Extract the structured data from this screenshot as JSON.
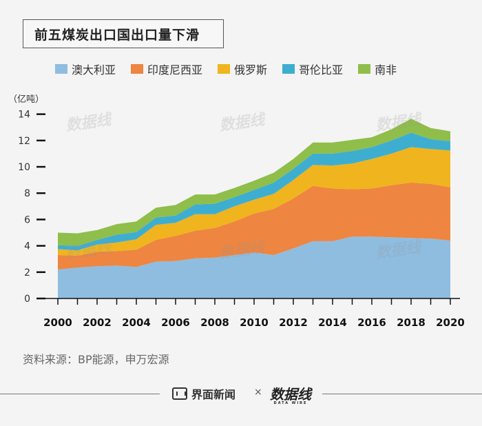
{
  "title": "前五煤炭出口国出口量下滑",
  "unit": "（亿吨）",
  "source": "资料来源：BP能源，申万宏源",
  "footer": {
    "brand1": "界面新闻",
    "cross": "×",
    "brand2": "数据线",
    "brand2_sub": "DATA WIRE"
  },
  "watermark": "数据线",
  "chart_data": {
    "type": "area",
    "stacked": true,
    "x": [
      2000,
      2001,
      2002,
      2003,
      2004,
      2005,
      2006,
      2007,
      2008,
      2009,
      2010,
      2011,
      2012,
      2013,
      2014,
      2015,
      2016,
      2017,
      2018,
      2019,
      2020
    ],
    "x_tick_labels": [
      "2000",
      "2002",
      "2004",
      "2006",
      "2008",
      "2010",
      "2012",
      "2014",
      "2016",
      "2018",
      "2020"
    ],
    "y_ticks": [
      0,
      2,
      4,
      6,
      8,
      10,
      12,
      14
    ],
    "ylim": [
      0,
      14.4
    ],
    "series": [
      {
        "name": "澳大利亚",
        "color": "#8fbde0",
        "values": [
          2.2,
          2.35,
          2.45,
          2.5,
          2.4,
          2.8,
          2.85,
          3.05,
          3.1,
          3.3,
          3.5,
          3.3,
          3.8,
          4.35,
          4.35,
          4.7,
          4.7,
          4.65,
          4.6,
          4.55,
          4.4
        ]
      },
      {
        "name": "印度尼西亚",
        "color": "#ee8540",
        "values": [
          1.1,
          0.9,
          1.1,
          1.1,
          1.3,
          1.65,
          1.9,
          2.1,
          2.25,
          2.55,
          2.95,
          3.5,
          3.8,
          4.2,
          4.0,
          3.6,
          3.65,
          3.95,
          4.2,
          4.15,
          4.05
        ]
      },
      {
        "name": "俄罗斯",
        "color": "#f0b41e",
        "values": [
          0.45,
          0.4,
          0.55,
          0.65,
          0.8,
          1.15,
          1.0,
          1.25,
          1.05,
          1.15,
          1.05,
          1.15,
          1.4,
          1.6,
          1.75,
          1.95,
          2.25,
          2.4,
          2.7,
          2.65,
          2.8
        ]
      },
      {
        "name": "哥伦比亚",
        "color": "#3eaed0",
        "values": [
          0.3,
          0.35,
          0.35,
          0.6,
          0.55,
          0.55,
          0.55,
          0.75,
          0.8,
          0.7,
          0.75,
          0.85,
          0.85,
          0.85,
          0.9,
          0.95,
          0.9,
          1.0,
          1.1,
          0.75,
          0.7
        ]
      },
      {
        "name": "南非",
        "color": "#8fbe4b",
        "values": [
          0.95,
          0.95,
          0.75,
          0.8,
          0.8,
          0.75,
          0.8,
          0.75,
          0.7,
          0.7,
          0.7,
          0.75,
          0.75,
          0.85,
          0.85,
          0.85,
          0.75,
          0.85,
          1.05,
          0.85,
          0.75
        ]
      }
    ]
  }
}
